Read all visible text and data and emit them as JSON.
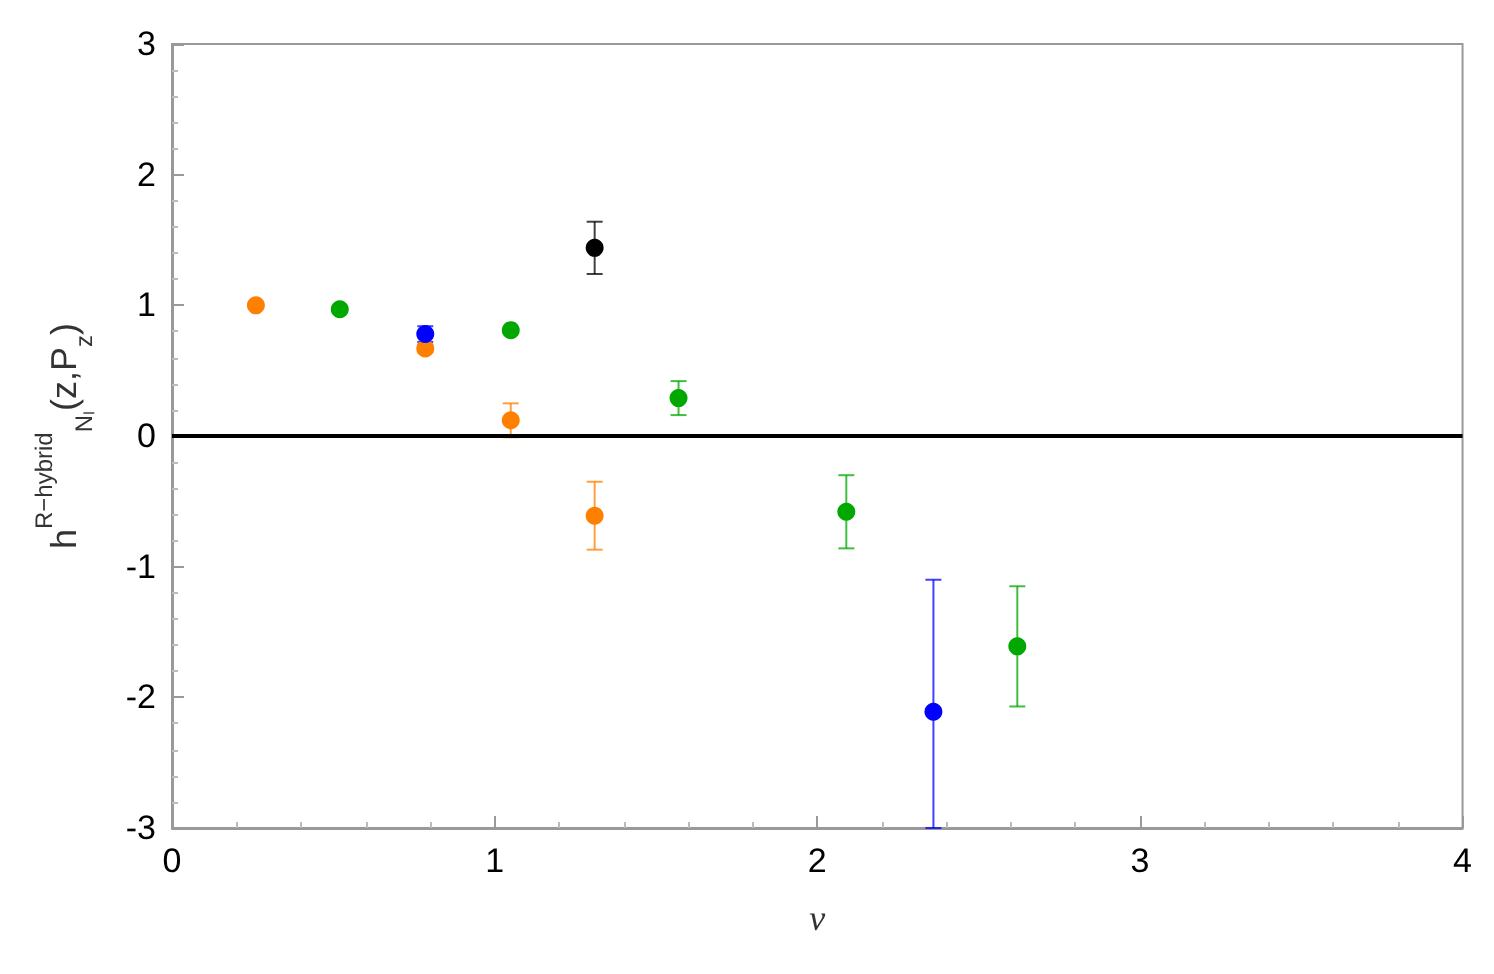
{
  "chart_data": {
    "type": "scatter",
    "xlabel": "ν",
    "ylabel": "h$^{R−hybrid}$$_{Nₗ}$(z,P$_{z}$)",
    "series": [
      {
        "color": "#ff8000",
        "x": [
          0.26,
          0.785,
          1.05,
          1.31
        ],
        "values": [
          1.0,
          0.67,
          0.12,
          -0.61
        ],
        "errors": [
          null,
          0.03,
          0.13,
          0.26
        ]
      },
      {
        "color": "#00a800",
        "x": [
          0.52,
          1.05,
          1.57,
          2.09,
          2.62
        ],
        "values": [
          0.97,
          0.81,
          0.29,
          -0.58,
          -1.61
        ],
        "errors": [
          null,
          null,
          0.13,
          0.28,
          0.46
        ]
      },
      {
        "color": "#0000ff",
        "x": [
          0.785,
          2.36
        ],
        "values": [
          0.78,
          -2.11
        ],
        "errors": [
          0.06,
          [
            -3,
            -1.1
          ]
        ]
      },
      {
        "color": "#000000",
        "x": [
          1.31
        ],
        "values": [
          1.44
        ],
        "errors": [
          0.2
        ]
      }
    ],
    "xlim": [
      0,
      4
    ],
    "xticks": [
      0,
      1,
      2,
      3,
      4
    ],
    "ylim": [
      -3,
      3
    ],
    "yticks": [
      -3,
      -2,
      -1,
      0,
      1,
      2,
      3
    ],
    "ref_lines": [
      {
        "axis": "y",
        "value": 0,
        "color": "#000000"
      }
    ],
    "marker": "circle"
  }
}
